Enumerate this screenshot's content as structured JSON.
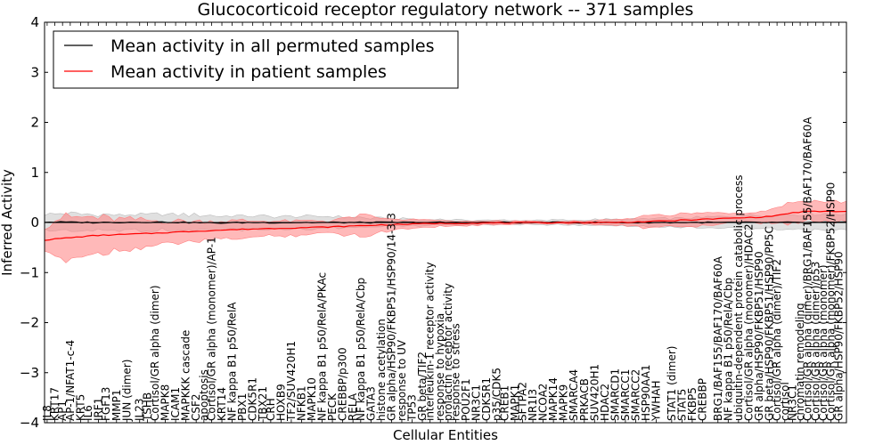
{
  "chart_data": {
    "type": "line",
    "title": "Glucocorticoid receptor regulatory network -- 371 samples",
    "xlabel": "Cellular Entities",
    "ylabel": "Inferred Activity",
    "ylim": [
      -4,
      4
    ],
    "yticks": [
      -4,
      -3,
      -2,
      -1,
      0,
      1,
      2,
      3,
      4
    ],
    "ytick_labels": [
      "−4",
      "−3",
      "−2",
      "−1",
      "0",
      "1",
      "2",
      "3",
      "4"
    ],
    "legend_position": "top-left",
    "series": [
      {
        "name": "Mean activity in all permuted samples",
        "color": "#000000",
        "band_color": "#bbbbbb",
        "control": [
          [
            0,
            0.01
          ],
          [
            10,
            0.0
          ],
          [
            20,
            0.01
          ],
          [
            28,
            0.0
          ],
          [
            33,
            -0.01
          ],
          [
            40,
            0.0
          ],
          [
            60,
            0.0
          ],
          [
            80,
            0.0
          ],
          [
            100,
            0.0
          ],
          [
            125,
            0.0
          ],
          [
            140,
            0.0
          ],
          [
            148,
            0.0
          ]
        ],
        "band_control": [
          [
            0,
            0.16
          ],
          [
            5,
            0.17
          ],
          [
            15,
            0.15
          ],
          [
            25,
            0.16
          ],
          [
            40,
            0.13
          ],
          [
            55,
            0.12
          ],
          [
            65,
            0.08
          ],
          [
            80,
            0.05
          ],
          [
            95,
            0.04
          ],
          [
            110,
            0.06
          ],
          [
            125,
            0.09
          ],
          [
            140,
            0.14
          ],
          [
            148,
            0.17
          ]
        ]
      },
      {
        "name": "Mean activity in patient samples",
        "color": "#ff0000",
        "band_color": "#ff8080",
        "control": [
          [
            0,
            -0.35
          ],
          [
            3,
            -0.32
          ],
          [
            10,
            -0.26
          ],
          [
            20,
            -0.22
          ],
          [
            30,
            -0.17
          ],
          [
            40,
            -0.13
          ],
          [
            55,
            -0.09
          ],
          [
            65,
            -0.05
          ],
          [
            75,
            -0.02
          ],
          [
            85,
            -0.01
          ],
          [
            100,
            0.0
          ],
          [
            110,
            0.0
          ],
          [
            118,
            0.02
          ],
          [
            125,
            0.05
          ],
          [
            132,
            0.08
          ],
          [
            140,
            0.11
          ],
          [
            143,
            0.15
          ],
          [
            146,
            0.2
          ],
          [
            148,
            0.22
          ]
        ],
        "band_control": [
          [
            0,
            0.28
          ],
          [
            3,
            0.42
          ],
          [
            8,
            0.38
          ],
          [
            15,
            0.3
          ],
          [
            25,
            0.22
          ],
          [
            35,
            0.18
          ],
          [
            45,
            0.15
          ],
          [
            55,
            0.12
          ],
          [
            62,
            0.2
          ],
          [
            68,
            0.1
          ],
          [
            78,
            0.05
          ],
          [
            90,
            0.03
          ],
          [
            100,
            0.02
          ],
          [
            108,
            0.04
          ],
          [
            113,
            0.06
          ],
          [
            118,
            0.14
          ],
          [
            122,
            0.12
          ],
          [
            128,
            0.13
          ],
          [
            135,
            0.1
          ],
          [
            140,
            0.12
          ],
          [
            143,
            0.18
          ],
          [
            146,
            0.22
          ],
          [
            148,
            0.2
          ]
        ]
      }
    ],
    "category_labels": [
      "IL8",
      "KRT17",
      "AP1",
      "AP-1/NFAT1-c-4",
      "KRT5",
      "IL6",
      "IRF1",
      "FGF13",
      "MMP1",
      "JUN (dimer)",
      "IL23",
      "TSHB",
      "Cortisol/GR alpha (dimer)",
      "MAPK8",
      "ICAM1",
      "MAPKKK cascade",
      "CSF2",
      "apoptosis",
      "Cortisol/GR alpha (monomer)/AP-1",
      "KRT14",
      "NF kappa B1 p50/RelA",
      "PBX1",
      "CDK5R1",
      "TBX21",
      "CRH",
      "HOXB9",
      "TF2/SUV420H1",
      "NFKB1",
      "MAPK10",
      "NF kappa B1 p50/RelA/PKAc",
      "PECK",
      "CREBBP/p300",
      "RELA",
      "NF kappa B1 p50/RelA/Cbp",
      "GATA3",
      "histone acetylation",
      "GR alpha/HSP90/FKBP51/HSP90/14-3-3",
      "response to UV",
      "TP53",
      "GR beta/TIF2",
      "interleukin-1 receptor activity",
      "response to hypoxia",
      "prolactin receptor activity",
      "response to stress",
      "POU2F1",
      "NR3C1",
      "CDK5R1",
      "p35/CDK5",
      "CREB1",
      "MAPK1",
      "SFTPA2",
      "NR1I3",
      "NCOA2",
      "MAPK14",
      "MAPK9",
      "SMARCA4",
      "PRKACB",
      "SUV420H1",
      "HDAC2",
      "SMARCD1",
      "SMARCC1",
      "SMARCC2",
      "HSP90AA1",
      "YWHAH",
      "STAT1 (dimer)",
      "STAT5",
      "FKBP5",
      "CREBBP",
      "BRG1/BAF155/BAF170/BAF60A",
      "NF kappa B1 p50/RelA/Cbp",
      "ubiquitin-dependent protein catabolic process",
      "Cortisol/GR alpha (monomer)/HDAC2",
      "GR alpha/HSP90/FKBP51/HSP90",
      "GR beta/HSP90/FKBP51/HSP90/PP5C",
      "Cortisol/GR alpha (dimer)/TIF2",
      "cortisol",
      "NR3C1",
      "chromatin remodeling",
      "Cortisol/GR alpha (dimer)/BRG1/BAF155/BAF170/BAF60A",
      "Cortisol/GR alpha (dimer)/p53",
      "Cortisol/GR alpha (monomer)",
      "Cortisol/GR alpha (monomer)/FKBP52/HSP90",
      "GR alpha/HSP90/FKBP52/HSP90"
    ],
    "category_positions": [
      0.5,
      2,
      3.5,
      5,
      7,
      8.5,
      10.5,
      12,
      14,
      16,
      18.5,
      20,
      21.5,
      23.5,
      25.5,
      27.5,
      29.5,
      31,
      32.5,
      34.5,
      36.5,
      38.5,
      40.5,
      42.5,
      44,
      46,
      48,
      50,
      52,
      54,
      56,
      58,
      60,
      61.5,
      63.5,
      65.5,
      67.5,
      69.5,
      71.5,
      73.5,
      75,
      77,
      78.5,
      80,
      82,
      84,
      86,
      88,
      89.5,
      91.5,
      93,
      95,
      97,
      99,
      101,
      103,
      105,
      107,
      109,
      111,
      113,
      115,
      117,
      119,
      122,
      124,
      126,
      128,
      131,
      133,
      135,
      137,
      139,
      141,
      142.5,
      144,
      145.5,
      147,
      148.5,
      150,
      151.5,
      153,
      154.5
    ],
    "x_range": [
      0,
      156
    ]
  }
}
